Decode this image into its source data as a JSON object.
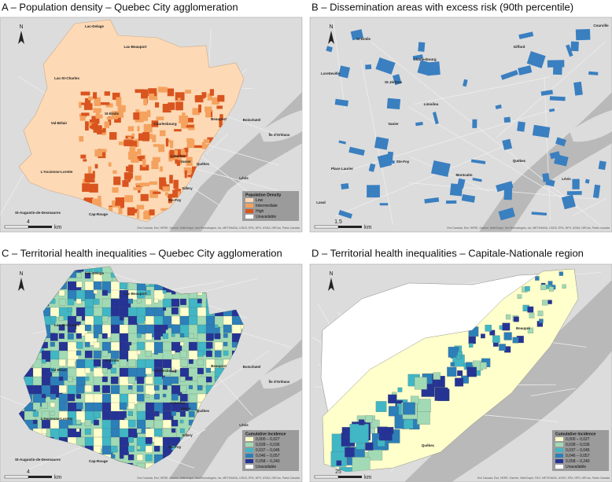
{
  "panels": [
    {
      "title": "A – Population density – Quebec City agglomeration",
      "places": [
        "Lac-Delage",
        "Lac-Beauport",
        "Lac-St-Charles",
        "Boischatel",
        "Île d'Orléans",
        "Val-Bélair",
        "St-Émile",
        "Charlesbourg",
        "Beauport",
        "Limoilou",
        "Vanier",
        "Québec",
        "L'Ancienne-Lorette",
        "Lévis",
        "Sillery",
        "Ste-Foy",
        "Cap-Rouge",
        "St-Augustin-de-Desmaures"
      ],
      "legend": {
        "title": "Population Density",
        "items": [
          "Low",
          "Intermediate",
          "High",
          "Unavailable"
        ],
        "colors": [
          "#fdd9b5",
          "#f4a25e",
          "#d9541e",
          "#ffffff"
        ]
      },
      "scale": {
        "value": "4",
        "unit": "km"
      },
      "north": "N",
      "attribution": "Esri Canada, Esri, HERE, Garmin, SafeGraph, GeoTechnologies, Inc, METI/NASA, USGS, EPA, NPS, USDA, NRCan, Parks Canada"
    },
    {
      "title": "B – Dissemination areas with excess risk (90th percentile)",
      "places": [
        "St-Émile",
        "Courville",
        "Loretteville",
        "Charlesbourg",
        "St-Jérôme",
        "Giffard",
        "Limoilou",
        "Vanier",
        "Place Laurier",
        "Ste-Foy",
        "Québec",
        "Montcalm",
        "Lévis",
        "Laval"
      ],
      "legend": {
        "colors": [
          "#3a7fc0"
        ]
      },
      "scale": {
        "value": "1.5",
        "unit": "km"
      },
      "north": "N",
      "attribution": "Esri Canada, Esri, HERE, Garmin, SafeGraph, GeoTechnologies, Inc, METI/NASA, USGS, EPA, NPS, USDA, NRCan, Parks Canada"
    },
    {
      "title": "C – Territorial health inequalities – Quebec City agglomeration",
      "places": [
        "Lac-Delage",
        "Lac-Beauport",
        "Lac-St-Charles",
        "Boischatel",
        "Île d'Orléans",
        "Val-Bélair",
        "St-Émile",
        "Charlesbourg",
        "Beauport",
        "Limoilou",
        "Vanier",
        "Québec",
        "L'Ancienne-Lorette",
        "Lévis",
        "Sillery",
        "Ste-Foy",
        "Cap-Rouge",
        "St-Augustin-de-Desmaures"
      ],
      "legend": {
        "title": "Cumulative Incidence",
        "items": [
          "0,000 – 0,027",
          "0,028 – 0,036",
          "0,037 – 0,045",
          "0,046 – 0,057",
          "0,058 – 0,240",
          "Unavailable"
        ],
        "colors": [
          "#ffffcc",
          "#a1dab4",
          "#41b6c4",
          "#2c7fb8",
          "#253494",
          "#ffffff"
        ]
      },
      "scale": {
        "value": "4",
        "unit": "km"
      },
      "north": "N",
      "attribution": "Esri Canada, Esri, HERE, Garmin, SafeGraph, GeoTechnologies, Inc, METI/NASA, USGS, EPA, NPS, USDA, NRCan, Parks Canada"
    },
    {
      "title": "D – Territorial health inequalities – Capitale-Nationale region",
      "places": [
        "Québec",
        "Beaupré"
      ],
      "legend": {
        "title": "Cumulative Incidence",
        "items": [
          "0,000 – 0,027",
          "0,028 – 0,036",
          "0,037 – 0,045",
          "0,046 – 0,057",
          "0,058 – 0,240",
          "Unavailable"
        ],
        "colors": [
          "#ffffcc",
          "#a1dab4",
          "#41b6c4",
          "#2c7fb8",
          "#253494",
          "#ffffff"
        ]
      },
      "scale": {
        "value": "25",
        "unit": "km"
      },
      "north": "N",
      "attribution": "Esri Canada, Esri, HERE, Garmin, SafeGraph, FAO, METI/NASA, USGS, EPA, NPS, NRCan, Parks Canada"
    }
  ]
}
